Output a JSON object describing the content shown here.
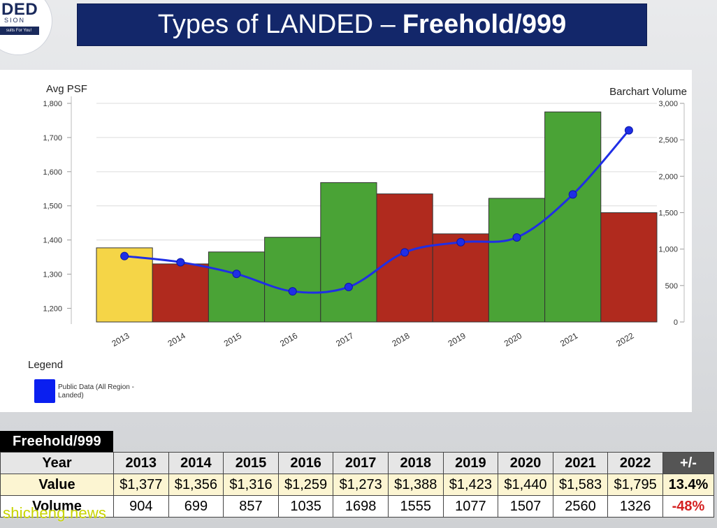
{
  "logo": {
    "main": "DED",
    "sub": "SION",
    "tagline": "sults For You!"
  },
  "title": {
    "light": "Types of LANDED –",
    "bold": "Freehold/999"
  },
  "chart_data": {
    "type": "bar",
    "categories": [
      "2013",
      "2014",
      "2015",
      "2016",
      "2017",
      "2018",
      "2019",
      "2020",
      "2021",
      "2022"
    ],
    "series": [
      {
        "axis": "left",
        "kind": "bar",
        "values": [
          1377,
          1330,
          1365,
          1408,
          1568,
          1535,
          1418,
          1522,
          1775,
          1480
        ],
        "colors": [
          "#f5d547",
          "#b02a1e",
          "#4aa336",
          "#4aa336",
          "#4aa336",
          "#b02a1e",
          "#b02a1e",
          "#4aa336",
          "#4aa336",
          "#b02a1e"
        ]
      },
      {
        "axis": "right",
        "kind": "line",
        "name": "Public Data (All Region - Landed)",
        "values": [
          904,
          820,
          660,
          420,
          480,
          955,
          1095,
          1160,
          1750,
          2630
        ],
        "color": "#1f2ee6"
      }
    ],
    "left_axis": {
      "title": "Avg PSF",
      "ylim": [
        1160,
        1800
      ],
      "ticks": [
        1200,
        1300,
        1400,
        1500,
        1600,
        1700,
        1800
      ],
      "tick_labels": [
        "1,200",
        "1,300",
        "1,400",
        "1,500",
        "1,600",
        "1,700",
        "1,800"
      ]
    },
    "right_axis": {
      "title": "Barchart Volume",
      "ylim": [
        0,
        3000
      ],
      "ticks": [
        0,
        500,
        1000,
        1500,
        2000,
        2500,
        3000
      ],
      "tick_labels": [
        "0",
        "500",
        "1,000",
        "1,500",
        "2,000",
        "2,500",
        "3,000"
      ]
    },
    "grid": true,
    "legend": {
      "title": "Legend",
      "placement": "bottom-left",
      "entries": [
        "Public Data (All Region - Landed)"
      ]
    }
  },
  "table": {
    "tab_label": "Freehold/999",
    "rows": {
      "year": {
        "label": "Year",
        "cells": [
          "2013",
          "2014",
          "2015",
          "2016",
          "2017",
          "2018",
          "2019",
          "2020",
          "2021",
          "2022"
        ],
        "change": "+/-"
      },
      "value": {
        "label": "Value",
        "cells": [
          "$1,377",
          "$1,356",
          "$1,316",
          "$1,259",
          "$1,273",
          "$1,388",
          "$1,423",
          "$1,440",
          "$1,583",
          "$1,795"
        ],
        "change": "13.4%"
      },
      "volume": {
        "label": "Volume",
        "cells": [
          "904",
          "699",
          "857",
          "1035",
          "1698",
          "1555",
          "1077",
          "1507",
          "2560",
          "1326"
        ],
        "change": "-48%"
      }
    }
  },
  "watermark": "shicheng.news"
}
